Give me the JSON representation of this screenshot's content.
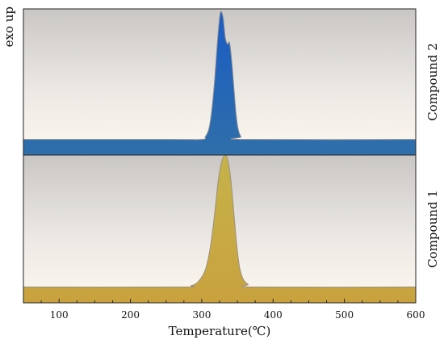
{
  "chart_data": {
    "type": "area",
    "xlabel": "Temperature(℃)",
    "ylabel": "exo up",
    "xlim": [
      50,
      600
    ],
    "x_ticks": [
      100,
      200,
      300,
      400,
      500,
      600
    ],
    "panels": [
      {
        "name": "Compound 2",
        "fill_color": "#2f6faa",
        "peak_color": "#1a5cc4",
        "baseline": 0.0,
        "ylim": [
          -0.12,
          1.0
        ],
        "points": [
          [
            50,
            0.0
          ],
          [
            250,
            0.0
          ],
          [
            300,
            0.0
          ],
          [
            305,
            0.02
          ],
          [
            310,
            0.08
          ],
          [
            314,
            0.22
          ],
          [
            318,
            0.45
          ],
          [
            322,
            0.75
          ],
          [
            325,
            0.93
          ],
          [
            327,
            0.98
          ],
          [
            330,
            0.93
          ],
          [
            333,
            0.78
          ],
          [
            336,
            0.73
          ],
          [
            339,
            0.74
          ],
          [
            342,
            0.6
          ],
          [
            345,
            0.4
          ],
          [
            348,
            0.2
          ],
          [
            351,
            0.08
          ],
          [
            355,
            0.02
          ],
          [
            360,
            0.0
          ],
          [
            600,
            0.0
          ]
        ]
      },
      {
        "name": "Compound 1",
        "fill_color": "#c9a23e",
        "peak_color": "#c6b24a",
        "baseline": 0.0,
        "ylim": [
          -0.12,
          1.0
        ],
        "points": [
          [
            50,
            0.0
          ],
          [
            270,
            0.0
          ],
          [
            285,
            0.01
          ],
          [
            295,
            0.04
          ],
          [
            305,
            0.13
          ],
          [
            312,
            0.3
          ],
          [
            318,
            0.55
          ],
          [
            323,
            0.8
          ],
          [
            328,
            0.95
          ],
          [
            333,
            1.0
          ],
          [
            337,
            0.95
          ],
          [
            341,
            0.8
          ],
          [
            345,
            0.56
          ],
          [
            349,
            0.32
          ],
          [
            353,
            0.15
          ],
          [
            358,
            0.06
          ],
          [
            365,
            0.02
          ],
          [
            375,
            0.0
          ],
          [
            600,
            0.0
          ]
        ]
      }
    ]
  }
}
